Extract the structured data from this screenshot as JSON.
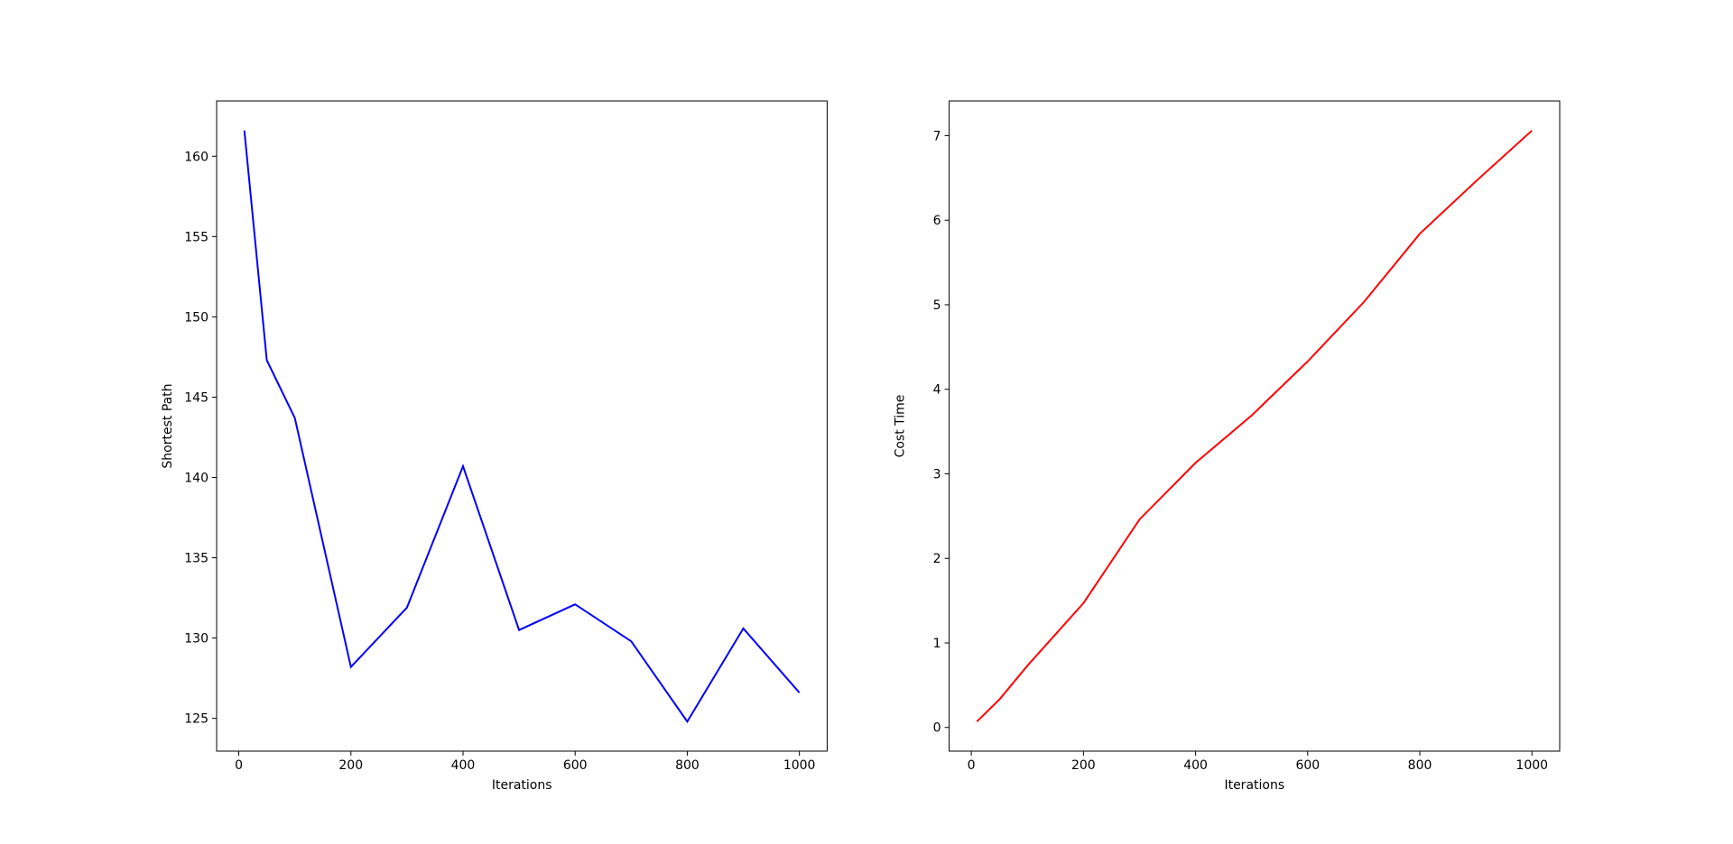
{
  "chart_data": [
    {
      "type": "line",
      "xlabel": "Iterations",
      "ylabel": "Shortest Path",
      "color": "#0000ff",
      "x": [
        10,
        50,
        100,
        200,
        300,
        400,
        500,
        600,
        700,
        800,
        900,
        1000
      ],
      "values": [
        161.6,
        147.3,
        143.7,
        128.2,
        131.9,
        140.7,
        130.5,
        132.1,
        129.8,
        124.8,
        130.6,
        126.6
      ],
      "xlim": [
        -39.5,
        1049.5
      ],
      "xticks": [
        0,
        200,
        400,
        600,
        800,
        1000
      ],
      "ylim": [
        122.96,
        163.44
      ],
      "yticks": [
        125,
        130,
        135,
        140,
        145,
        150,
        155,
        160
      ]
    },
    {
      "type": "line",
      "xlabel": "Iterations",
      "ylabel": "Cost Time",
      "color": "#ff0000",
      "x": [
        10,
        50,
        100,
        200,
        300,
        400,
        500,
        600,
        700,
        800,
        900,
        1000
      ],
      "values": [
        0.07,
        0.33,
        0.73,
        1.47,
        2.46,
        3.13,
        3.69,
        4.33,
        5.03,
        5.84,
        6.46,
        7.06
      ],
      "xlim": [
        -39.5,
        1049.5
      ],
      "xticks": [
        0,
        200,
        400,
        600,
        800,
        1000
      ],
      "ylim": [
        -0.28,
        7.41
      ],
      "yticks": [
        0,
        1,
        2,
        3,
        4,
        5,
        6,
        7
      ]
    }
  ]
}
